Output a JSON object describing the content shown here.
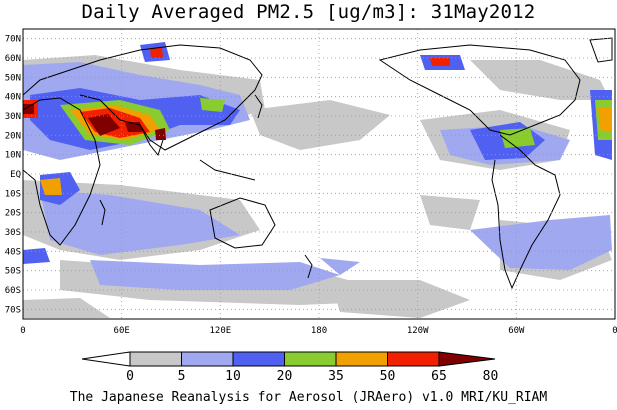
{
  "title": "Daily Averaged PM2.5 [ug/m3]: 31May2012",
  "footer": "The Japanese Reanalysis for Aerosol (JRAero) v1.0 MRI/KU_RIAM",
  "map": {
    "projection": "equirectangular",
    "lon_range": [
      0,
      360
    ],
    "lat_range": [
      -75,
      75
    ],
    "grid": "dotted",
    "lat_ticks": [
      "70N",
      "60N",
      "50N",
      "40N",
      "30N",
      "20N",
      "10N",
      "EQ",
      "10S",
      "20S",
      "30S",
      "40S",
      "50S",
      "60S",
      "70S"
    ],
    "lat_values": [
      70,
      60,
      50,
      40,
      30,
      20,
      10,
      0,
      -10,
      -20,
      -30,
      -40,
      -50,
      -60,
      -70
    ],
    "lon_ticks": [
      "0",
      "60E",
      "120E",
      "180",
      "120W",
      "60W",
      "0"
    ],
    "lon_values": [
      0,
      60,
      120,
      180,
      240,
      300,
      360
    ]
  },
  "colorbar": {
    "levels": [
      "0",
      "5",
      "10",
      "20",
      "35",
      "50",
      "65",
      "80"
    ],
    "colors": [
      "#ffffff",
      "#c8c8c8",
      "#a0a8f0",
      "#5060f0",
      "#88cc30",
      "#f0a000",
      "#f02000",
      "#800000"
    ]
  },
  "colors": {
    "land_outline": "#000000",
    "grid": "#999999"
  }
}
